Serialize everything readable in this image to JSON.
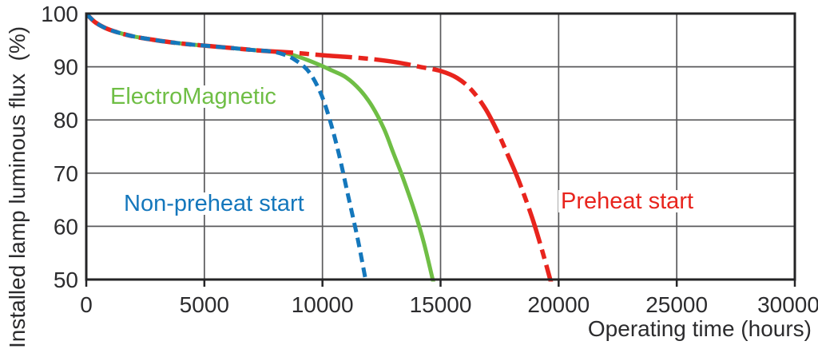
{
  "chart_data": {
    "type": "line",
    "title": "",
    "xlabel": "Operating time (hours)",
    "ylabel": "Installed lamp luminous flux  (%)",
    "xlim": [
      0,
      30000
    ],
    "ylim": [
      50,
      100
    ],
    "grid": true,
    "legend_position": "inline-labels",
    "x_ticks": {
      "values": [
        0,
        5000,
        10000,
        15000,
        20000,
        25000,
        30000
      ],
      "labels": [
        "0",
        "5000",
        "10000",
        "15000",
        "20000",
        "25000",
        "30000"
      ]
    },
    "y_ticks": {
      "values": [
        100,
        90,
        80,
        70,
        60,
        50
      ],
      "labels": [
        "100",
        "90",
        "80",
        "70",
        "60",
        "50"
      ]
    },
    "axis_color": "#242426",
    "grid_color": "#5a5a5c",
    "series": [
      {
        "name": "ElectroMagnetic",
        "color": "#6fbe45",
        "line_style": "solid",
        "points": [
          [
            0,
            100
          ],
          [
            150,
            99.3
          ],
          [
            400,
            98.3
          ],
          [
            800,
            97.3
          ],
          [
            1300,
            96.5
          ],
          [
            2000,
            95.7
          ],
          [
            2800,
            95.1
          ],
          [
            3600,
            94.6
          ],
          [
            4400,
            94.2
          ],
          [
            5200,
            93.9
          ],
          [
            6200,
            93.5
          ],
          [
            7200,
            93.1
          ],
          [
            7800,
            92.9
          ],
          [
            8400,
            92.6
          ],
          [
            9100,
            91.7
          ],
          [
            9800,
            90.5
          ],
          [
            10400,
            89.3
          ],
          [
            11000,
            88.0
          ],
          [
            11600,
            85.6
          ],
          [
            12100,
            82.6
          ],
          [
            12600,
            78.4
          ],
          [
            13000,
            73.8
          ],
          [
            13400,
            69.2
          ],
          [
            13900,
            62.8
          ],
          [
            14300,
            56.8
          ],
          [
            14700,
            49.4
          ]
        ]
      },
      {
        "name": "Preheat start",
        "color": "#e8241d",
        "line_style": "dash-dot",
        "points": [
          [
            0,
            100
          ],
          [
            150,
            99.3
          ],
          [
            400,
            98.3
          ],
          [
            800,
            97.3
          ],
          [
            1300,
            96.5
          ],
          [
            2000,
            95.7
          ],
          [
            2800,
            95.1
          ],
          [
            3600,
            94.6
          ],
          [
            4400,
            94.2
          ],
          [
            5200,
            93.9
          ],
          [
            6200,
            93.5
          ],
          [
            7200,
            93.1
          ],
          [
            7800,
            92.9
          ],
          [
            8600,
            92.7
          ],
          [
            9400,
            92.4
          ],
          [
            10200,
            92.1
          ],
          [
            11200,
            91.8
          ],
          [
            12200,
            91.4
          ],
          [
            13200,
            90.8
          ],
          [
            14100,
            90.0
          ],
          [
            15000,
            89.2
          ],
          [
            15700,
            87.9
          ],
          [
            16300,
            85.7
          ],
          [
            16900,
            82.1
          ],
          [
            17400,
            77.9
          ],
          [
            17900,
            72.9
          ],
          [
            18300,
            68.7
          ],
          [
            18850,
            62.0
          ],
          [
            19300,
            55.5
          ],
          [
            19680,
            49.4
          ]
        ]
      },
      {
        "name": "Non-preheat start",
        "color": "#1477bc",
        "line_style": "dashed",
        "points": [
          [
            0,
            100
          ],
          [
            150,
            99.3
          ],
          [
            400,
            98.3
          ],
          [
            800,
            97.3
          ],
          [
            1300,
            96.5
          ],
          [
            2000,
            95.7
          ],
          [
            2800,
            95.1
          ],
          [
            3600,
            94.6
          ],
          [
            4400,
            94.2
          ],
          [
            5200,
            93.9
          ],
          [
            6200,
            93.5
          ],
          [
            7200,
            93.1
          ],
          [
            7800,
            92.9
          ],
          [
            8300,
            92.4
          ],
          [
            8800,
            91.4
          ],
          [
            9400,
            89.2
          ],
          [
            9900,
            85.3
          ],
          [
            10300,
            80.2
          ],
          [
            10700,
            73.5
          ],
          [
            11100,
            65.5
          ],
          [
            11500,
            57.5
          ],
          [
            11850,
            49.4
          ]
        ]
      }
    ]
  }
}
